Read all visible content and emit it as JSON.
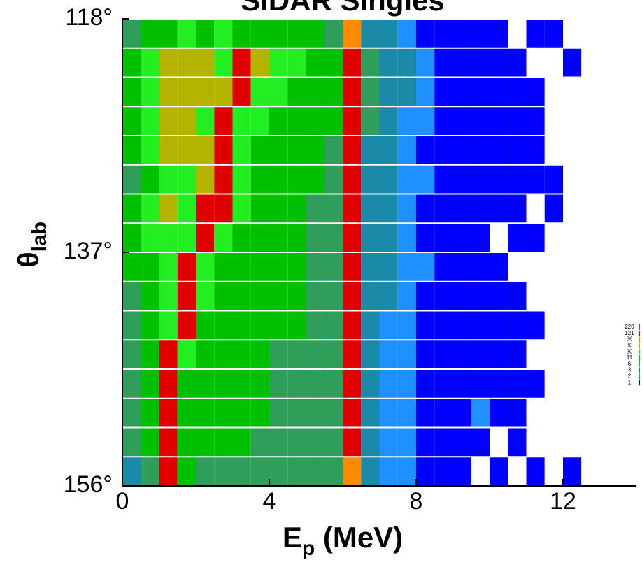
{
  "chart_data": {
    "type": "heatmap",
    "title": "SIDAR Singles",
    "xlabel": {
      "main": "E",
      "sub": "p",
      "rest": " (MeV)"
    },
    "ylabel": {
      "main": "θ",
      "sub": "lab"
    },
    "xlim": [
      0,
      14
    ],
    "xticks": [
      0,
      4,
      8,
      12
    ],
    "ylim": [
      118,
      156
    ],
    "yticks": [
      {
        "value": 118,
        "label": "118°"
      },
      {
        "value": 137,
        "label": "137°"
      },
      {
        "value": 156,
        "label": "156°"
      }
    ],
    "bins": [
      0,
      0.5,
      1,
      1.5,
      2,
      2.5,
      3,
      3.5,
      4,
      4.5,
      5,
      5.5,
      6,
      6.5,
      7,
      7.5,
      8,
      8.5,
      9,
      9.5,
      10,
      10.5,
      11,
      11.5,
      12,
      12.5,
      13,
      13.5,
      14
    ],
    "levels": [
      1,
      2,
      3,
      6,
      11,
      20,
      30,
      66,
      121,
      220
    ],
    "colors": [
      "#0000ff",
      "#1e90ff",
      "#1a8aa8",
      "#2e9e5a",
      "#00c000",
      "#22ee22",
      "#b4b400",
      "#ff8c00",
      "#e00000",
      "#ff1493"
    ],
    "z": [
      [
        6,
        11,
        11,
        20,
        11,
        20,
        11,
        11,
        11,
        11,
        11,
        6,
        66,
        3,
        3,
        2,
        1,
        1,
        1,
        1,
        1,
        0,
        1,
        1,
        0,
        0,
        0,
        0
      ],
      [
        11,
        20,
        30,
        30,
        30,
        20,
        121,
        30,
        20,
        20,
        11,
        11,
        121,
        6,
        3,
        3,
        2,
        1,
        1,
        1,
        1,
        1,
        0,
        0,
        1,
        0,
        0,
        0
      ],
      [
        11,
        20,
        30,
        30,
        30,
        30,
        121,
        20,
        20,
        11,
        11,
        11,
        121,
        6,
        3,
        3,
        2,
        1,
        1,
        1,
        1,
        1,
        1,
        0,
        0,
        0,
        0,
        0
      ],
      [
        11,
        20,
        30,
        30,
        20,
        121,
        20,
        20,
        11,
        11,
        11,
        11,
        121,
        6,
        3,
        2,
        2,
        1,
        1,
        1,
        1,
        1,
        1,
        0,
        0,
        0,
        0,
        0
      ],
      [
        11,
        20,
        30,
        30,
        30,
        121,
        20,
        11,
        11,
        11,
        11,
        6,
        121,
        3,
        3,
        2,
        1,
        1,
        1,
        1,
        1,
        1,
        1,
        0,
        0,
        0,
        0,
        0
      ],
      [
        6,
        11,
        20,
        20,
        30,
        121,
        20,
        11,
        11,
        11,
        11,
        6,
        121,
        3,
        3,
        2,
        2,
        1,
        1,
        1,
        1,
        1,
        1,
        1,
        0,
        0,
        0,
        0
      ],
      [
        11,
        20,
        30,
        20,
        121,
        121,
        20,
        11,
        11,
        11,
        6,
        6,
        121,
        3,
        3,
        2,
        1,
        1,
        1,
        1,
        1,
        1,
        0,
        1,
        0,
        0,
        0,
        0
      ],
      [
        11,
        20,
        20,
        20,
        121,
        20,
        11,
        11,
        11,
        11,
        6,
        6,
        121,
        3,
        3,
        2,
        1,
        1,
        1,
        1,
        0,
        1,
        1,
        0,
        0,
        0,
        0,
        0
      ],
      [
        11,
        11,
        20,
        121,
        20,
        11,
        11,
        11,
        11,
        11,
        6,
        6,
        121,
        3,
        3,
        2,
        2,
        1,
        1,
        1,
        1,
        0,
        0,
        0,
        0,
        0,
        0,
        0
      ],
      [
        6,
        11,
        20,
        121,
        20,
        11,
        11,
        11,
        11,
        11,
        6,
        6,
        121,
        3,
        3,
        2,
        1,
        1,
        1,
        1,
        1,
        1,
        0,
        0,
        0,
        0,
        0,
        0
      ],
      [
        6,
        11,
        20,
        121,
        11,
        11,
        11,
        11,
        11,
        11,
        6,
        6,
        121,
        3,
        2,
        2,
        1,
        1,
        1,
        1,
        1,
        1,
        1,
        0,
        0,
        0,
        0,
        0
      ],
      [
        6,
        11,
        121,
        20,
        11,
        11,
        11,
        11,
        6,
        6,
        6,
        6,
        121,
        3,
        2,
        2,
        1,
        1,
        1,
        1,
        1,
        1,
        0,
        0,
        0,
        0,
        0,
        0
      ],
      [
        6,
        11,
        121,
        11,
        11,
        11,
        11,
        11,
        6,
        6,
        6,
        6,
        121,
        3,
        2,
        2,
        1,
        1,
        1,
        1,
        1,
        1,
        1,
        0,
        0,
        0,
        0,
        0
      ],
      [
        6,
        11,
        121,
        11,
        11,
        11,
        11,
        11,
        6,
        6,
        6,
        6,
        121,
        3,
        2,
        2,
        1,
        1,
        1,
        2,
        1,
        1,
        0,
        0,
        0,
        0,
        0,
        0
      ],
      [
        6,
        11,
        121,
        11,
        11,
        11,
        11,
        6,
        6,
        6,
        6,
        6,
        121,
        3,
        2,
        2,
        1,
        1,
        1,
        1,
        0,
        1,
        0,
        0,
        0,
        0,
        0,
        0
      ],
      [
        3,
        6,
        121,
        11,
        6,
        6,
        6,
        6,
        6,
        6,
        6,
        6,
        66,
        3,
        2,
        2,
        1,
        1,
        1,
        0,
        1,
        0,
        1,
        0,
        1,
        0,
        0,
        0
      ]
    ]
  }
}
